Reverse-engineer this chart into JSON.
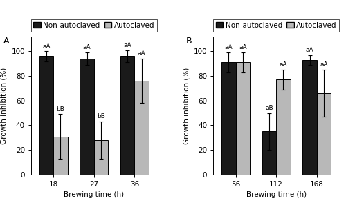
{
  "panel_A": {
    "label": "A",
    "categories": [
      "18",
      "27",
      "36"
    ],
    "xlabel": "Brewing time (h)",
    "ylabel": "Growth inhibition (%)",
    "non_autoclaved_means": [
      96,
      94,
      96
    ],
    "non_autoclaved_errors": [
      4,
      5,
      5
    ],
    "autoclaved_means": [
      31,
      28,
      76
    ],
    "autoclaved_errors": [
      18,
      15,
      18
    ],
    "non_autoclaved_labels": [
      "aA",
      "aA",
      "aA"
    ],
    "autoclaved_labels": [
      "bB",
      "bB",
      "aA"
    ],
    "ylim": [
      0,
      112
    ]
  },
  "panel_B": {
    "label": "B",
    "categories": [
      "56",
      "112",
      "168"
    ],
    "xlabel": "Brewing time (h)",
    "ylabel": "Growth inhibition (%)",
    "non_autoclaved_means": [
      91,
      35,
      93
    ],
    "non_autoclaved_errors": [
      8,
      15,
      4
    ],
    "autoclaved_means": [
      91,
      77,
      66
    ],
    "autoclaved_errors": [
      8,
      8,
      19
    ],
    "non_autoclaved_labels": [
      "aA",
      "aB",
      "aA"
    ],
    "autoclaved_labels": [
      "aA",
      "aA",
      "aA"
    ],
    "ylim": [
      0,
      112
    ]
  },
  "legend_labels": [
    "Non-autoclaved",
    "Autoclaved"
  ],
  "bar_colors": [
    "#1a1a1a",
    "#b8b8b8"
  ],
  "bar_width": 0.35,
  "bar_edgecolor": "black",
  "annotation_fontsize": 6.5,
  "label_fontsize": 7.5,
  "tick_fontsize": 7.5,
  "legend_fontsize": 7.5,
  "panel_label_fontsize": 9,
  "figsize": [
    5.0,
    2.94
  ],
  "dpi": 100
}
